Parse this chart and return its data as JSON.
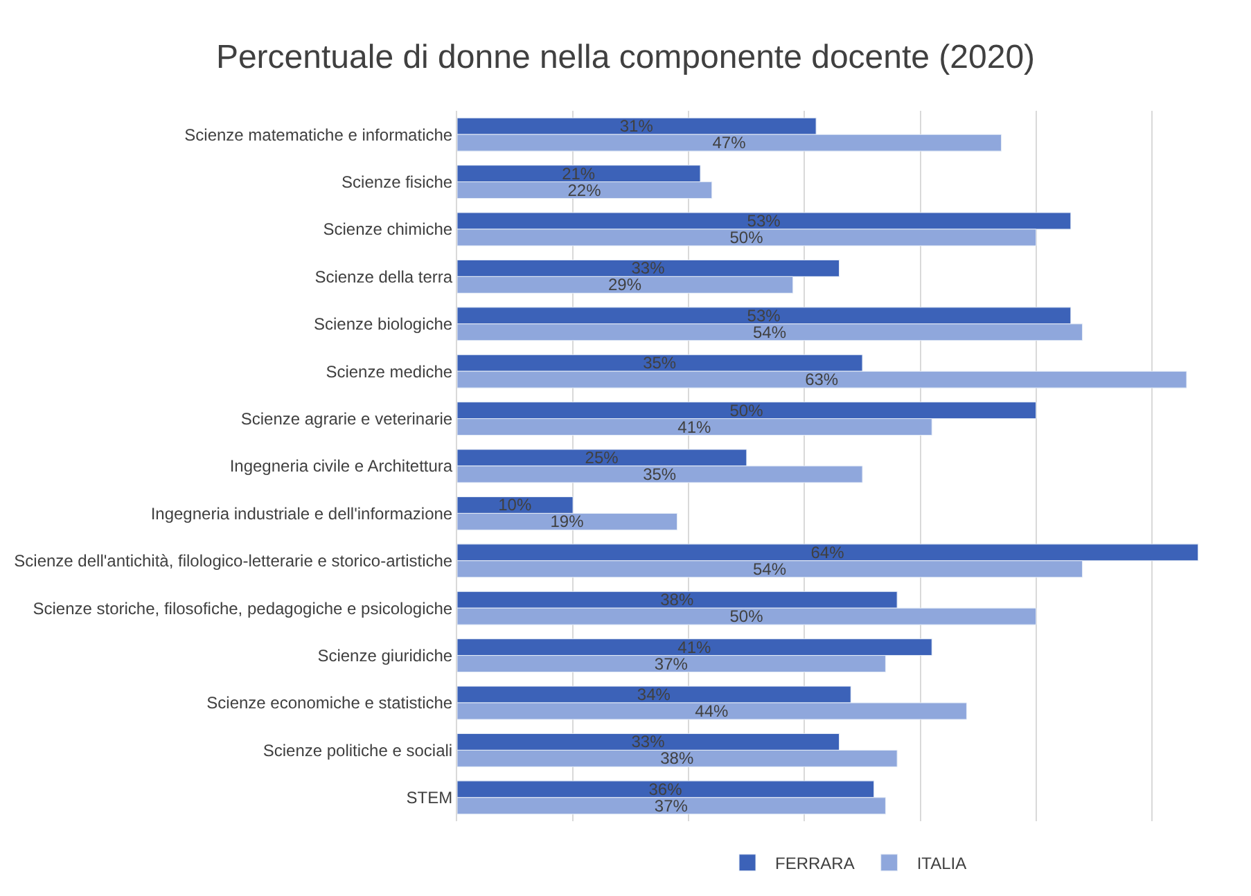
{
  "chart_data": {
    "type": "bar",
    "orientation": "horizontal",
    "title": "Percentuale di donne nella componente docente (2020)",
    "categories": [
      "Scienze matematiche e informatiche",
      "Scienze fisiche",
      "Scienze chimiche",
      "Scienze della terra",
      "Scienze biologiche",
      "Scienze mediche",
      "Scienze agrarie e veterinarie",
      "Ingegneria civile e Architettura",
      "Ingegneria industriale e dell'informazione",
      "Scienze dell'antichità, filologico-letterarie e storico-artistiche",
      "Scienze storiche, filosofiche, pedagogiche e psicologiche",
      "Scienze giuridiche",
      "Scienze economiche e statistiche",
      "Scienze politiche e sociali",
      "STEM"
    ],
    "series": [
      {
        "name": "FERRARA",
        "color": "#3c62b8",
        "values": [
          31,
          21,
          53,
          33,
          53,
          35,
          50,
          25,
          10,
          64,
          38,
          41,
          34,
          33,
          36
        ],
        "value_labels": [
          "31%",
          "21%",
          "53%",
          "33%",
          "53%",
          "35%",
          "50%",
          "25%",
          "10%",
          "64%",
          "38%",
          "41%",
          "34%",
          "33%",
          "36%"
        ]
      },
      {
        "name": "ITALIA",
        "color": "#8fa7dc",
        "values": [
          47,
          22,
          50,
          29,
          54,
          63,
          41,
          35,
          19,
          54,
          50,
          37,
          44,
          38,
          37
        ],
        "value_labels": [
          "47%",
          "22%",
          "50%",
          "29%",
          "54%",
          "63%",
          "41%",
          "35%",
          "19%",
          "54%",
          "50%",
          "37%",
          "44%",
          "38%",
          "37%"
        ]
      }
    ],
    "tick_labels": "y",
    "grid": "x",
    "legend": "bottom"
  }
}
